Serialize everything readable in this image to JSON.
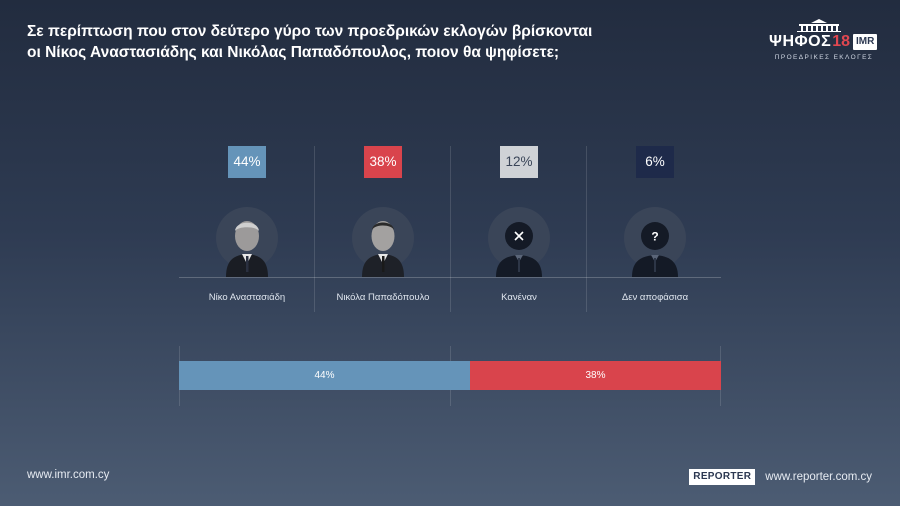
{
  "header": {
    "question_line1": "Σε περίπτωση που στον δεύτερο γύρο των προεδρικών εκλογών βρίσκονται",
    "question_line2": "οι Νίκος Αναστασιάδης και Νικόλας Παπαδόπουλος, ποιον θα ψηφίσετε;"
  },
  "logo": {
    "word": "ΨΗΦΟΣ",
    "year": "18",
    "partner": "IMR",
    "subtitle": "ΠΡΟΕΔΡΙΚΕΣ ΕΚΛΟΓΕΣ"
  },
  "chart_data": {
    "type": "bar",
    "categories": [
      "Νίκο Αναστασιάδη",
      "Νικόλα Παπαδόπουλο",
      "Κανέναν",
      "Δεν αποφάσισα"
    ],
    "values": [
      44,
      38,
      12,
      6
    ],
    "value_labels": [
      "44%",
      "38%",
      "12%",
      "6%"
    ],
    "colors": [
      "#6594b9",
      "#d9444c",
      "#cfd2d6",
      "#1e2a4a"
    ],
    "portrait_icons": [
      "portrait-photo",
      "portrait-photo",
      "person-x-icon",
      "person-question-icon"
    ],
    "stacked_bar": {
      "segments": [
        {
          "value": 44,
          "label": "44%",
          "color": "#6594b9"
        },
        {
          "value": 38,
          "label": "38%",
          "color": "#d9444c"
        }
      ],
      "max": 82
    }
  },
  "footer": {
    "left_url": "www.imr.com.cy",
    "reporter_logo": "REPORTER",
    "right_url": "www.reporter.com.cy"
  }
}
